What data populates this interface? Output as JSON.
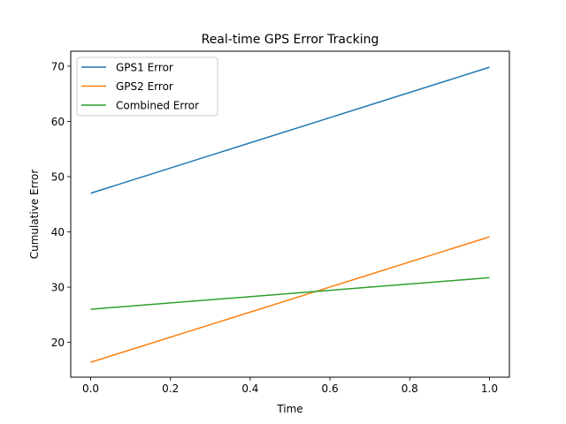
{
  "chart_data": {
    "type": "line",
    "title": "Real-time GPS Error Tracking",
    "xlabel": "Time",
    "ylabel": "Cumulative Error",
    "xlim": [
      -0.05,
      1.05
    ],
    "ylim": [
      13.7,
      72.7
    ],
    "x": [
      0.0,
      1.0
    ],
    "x_ticks": [
      0.0,
      0.2,
      0.4,
      0.6,
      0.8,
      1.0
    ],
    "x_tick_labels": [
      "0.0",
      "0.2",
      "0.4",
      "0.6",
      "0.8",
      "1.0"
    ],
    "y_ticks": [
      20,
      30,
      40,
      50,
      60,
      70
    ],
    "y_tick_labels": [
      "20",
      "30",
      "40",
      "50",
      "60",
      "70"
    ],
    "grid": false,
    "legend_position": "top-left",
    "series": [
      {
        "name": "GPS1 Error",
        "color": "#1f77b4",
        "values": [
          47.0,
          69.8
        ]
      },
      {
        "name": "GPS2 Error",
        "color": "#ff7f0e",
        "values": [
          16.4,
          39.1
        ]
      },
      {
        "name": "Combined Error",
        "color": "#2ca02c",
        "values": [
          26.0,
          31.7
        ]
      }
    ]
  }
}
